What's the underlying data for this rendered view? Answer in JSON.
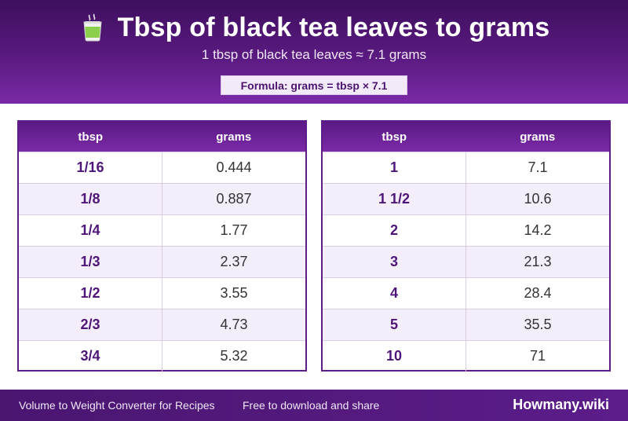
{
  "header": {
    "title": "Tbsp of black tea leaves to grams",
    "icon": "tea-cup-icon",
    "subtitle": "1 tbsp of black tea leaves ≈ 7.1 grams",
    "formula": "Formula: grams = tbsp × 7.1"
  },
  "tables": [
    {
      "col1": "tbsp",
      "col2": "grams",
      "rows": [
        {
          "tbsp": "1/16",
          "grams": "0.444"
        },
        {
          "tbsp": "1/8",
          "grams": "0.887"
        },
        {
          "tbsp": "1/4",
          "grams": "1.77"
        },
        {
          "tbsp": "1/3",
          "grams": "2.37"
        },
        {
          "tbsp": "1/2",
          "grams": "3.55"
        },
        {
          "tbsp": "2/3",
          "grams": "4.73"
        },
        {
          "tbsp": "3/4",
          "grams": "5.32"
        }
      ]
    },
    {
      "col1": "tbsp",
      "col2": "grams",
      "rows": [
        {
          "tbsp": "1",
          "grams": "7.1"
        },
        {
          "tbsp": "1 1/2",
          "grams": "10.6"
        },
        {
          "tbsp": "2",
          "grams": "14.2"
        },
        {
          "tbsp": "3",
          "grams": "21.3"
        },
        {
          "tbsp": "4",
          "grams": "28.4"
        },
        {
          "tbsp": "5",
          "grams": "35.5"
        },
        {
          "tbsp": "10",
          "grams": "71"
        }
      ]
    }
  ],
  "footer": {
    "left": "Volume to Weight Converter for Recipes",
    "middle": "Free to download and share",
    "brand": "Howmany.wiki"
  },
  "colors": {
    "header_dark": "#3e0f5e",
    "header_light": "#7a2aa6",
    "accent": "#5d1c88",
    "row_alt": "#f4eefa"
  }
}
